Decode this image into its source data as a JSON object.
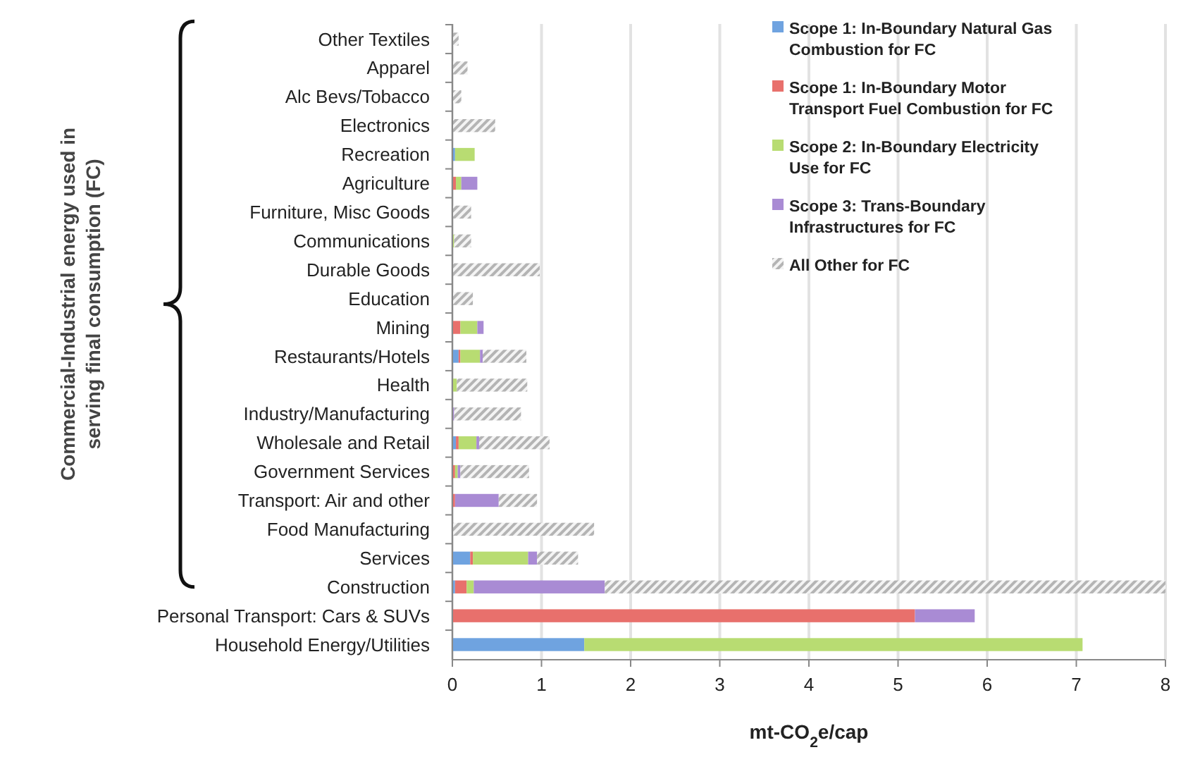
{
  "chart_data": {
    "type": "bar",
    "orientation": "horizontal",
    "stacked": true,
    "xlabel": "mt-CO$_{2}$e/cap",
    "ylabel": "Commercial-Industrial energy used in serving final consumption (FC)",
    "categories": [
      "Other Textiles",
      "Apparel",
      "Alc Bevs/Tobacco",
      "Electronics",
      "Recreation",
      "Agriculture",
      "Furniture, Misc Goods",
      "Communications",
      "Durable Goods",
      "Education",
      "Mining",
      "Restaurants/Hotels",
      "Health",
      "Industry/Manufacturing",
      "Wholesale and Retail",
      "Government Services",
      "Transport: Air and other",
      "Food Manufacturing",
      "Services",
      "Construction",
      "Personal Transport: Cars & SUVs",
      "Household Energy/Utilities"
    ],
    "series": [
      {
        "name": "Scope 1: In-Boundary Natural Gas Combustion for FC",
        "color": "#6fa3e0",
        "values": [
          0,
          0,
          0,
          0,
          0.03,
          0,
          0,
          0,
          0,
          0,
          0,
          0.07,
          null,
          0,
          0.04,
          0,
          0,
          0,
          0.2,
          0.03,
          0,
          1.48
        ]
      },
      {
        "name": "Scope 1: In-Boundary Motor Transport Fuel Combustion for FC",
        "color": "#e8706c",
        "values": [
          0,
          0,
          0,
          0,
          0,
          0.04,
          0,
          0,
          0,
          0,
          0.09,
          0.02,
          0,
          0,
          0.03,
          0.03,
          0.03,
          0,
          0.03,
          0.13,
          5.19,
          0
        ]
      },
      {
        "name": "Scope 2: In-Boundary Electricity Use for FC",
        "color": "#b8dc72",
        "values": [
          0,
          0,
          0,
          0,
          0.22,
          0.06,
          0,
          0.02,
          0,
          0,
          0.19,
          0.22,
          0.05,
          0,
          0.2,
          0.03,
          0,
          0,
          0.62,
          0.08,
          0,
          5.59
        ]
      },
      {
        "name": "Scope 3: Trans-Boundary Infrastructures for FC",
        "color": "#a98bd4",
        "values": [
          0,
          0,
          0,
          0,
          0,
          0.18,
          0,
          0,
          0,
          0,
          0.07,
          0.03,
          0,
          0.02,
          0.03,
          0.03,
          0.49,
          0,
          0.1,
          1.47,
          0.67,
          0
        ]
      },
      {
        "name": "All Other for FC",
        "color": "#b4b4b4",
        "values": [
          0.07,
          0.17,
          0.1,
          0.48,
          0,
          0,
          0.21,
          0.19,
          0.98,
          0.23,
          0,
          0.49,
          0.79,
          0.75,
          0.79,
          0.77,
          0.43,
          1.59,
          0.46,
          6.29,
          0,
          0
        ]
      }
    ],
    "xlim": [
      0,
      8
    ],
    "xticks": [
      0,
      1,
      2,
      3,
      4,
      5,
      6,
      7,
      8
    ],
    "grid": "x",
    "legend": "top right"
  }
}
